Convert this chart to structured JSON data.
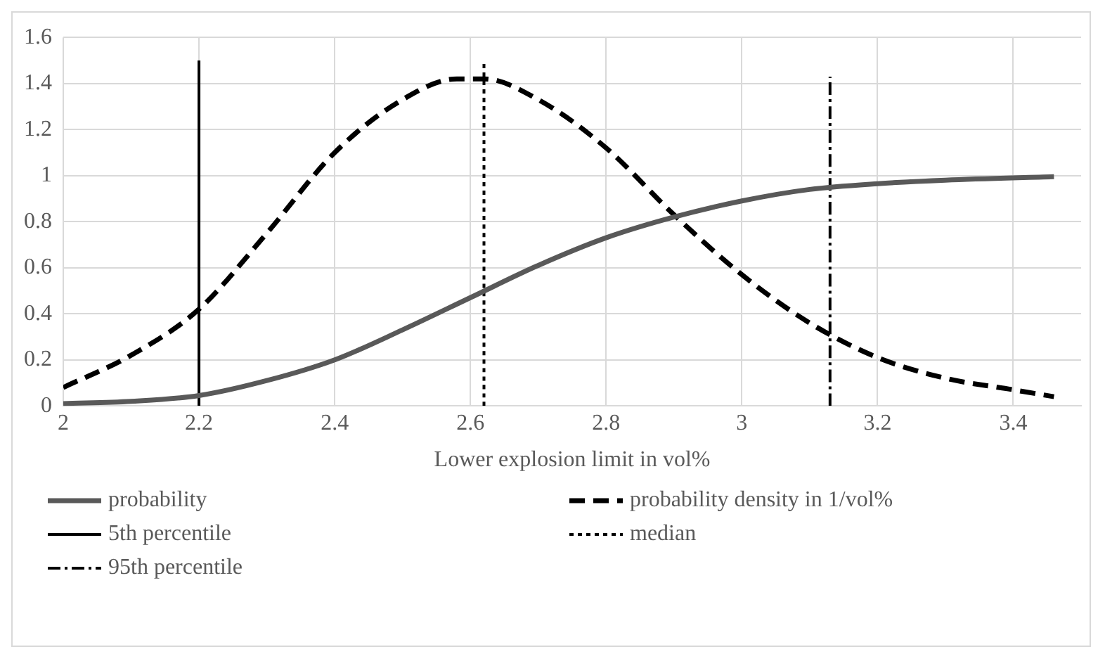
{
  "chart_data": {
    "type": "line",
    "xlabel": "Lower explosion limit in vol%",
    "xlim": [
      2,
      3.5
    ],
    "xticks": [
      2,
      2.2,
      2.4,
      2.6,
      2.8,
      3,
      3.2,
      3.4
    ],
    "ylim": [
      0,
      1.6
    ],
    "yticks": [
      0,
      0.2,
      0.4,
      0.6,
      0.8,
      1,
      1.2,
      1.4,
      1.6
    ],
    "grid": true,
    "legend": "bottom",
    "marker": "none",
    "series": [
      {
        "name": "probability",
        "color": "#595959",
        "line_style": "solid",
        "x": [
          2,
          2.1,
          2.2,
          2.3,
          2.4,
          2.5,
          2.6,
          2.7,
          2.8,
          2.9,
          3,
          3.1,
          3.2,
          3.3,
          3.46
        ],
        "values": [
          0.01,
          0.02,
          0.045,
          0.11,
          0.2,
          0.33,
          0.47,
          0.61,
          0.73,
          0.82,
          0.89,
          0.94,
          0.965,
          0.98,
          0.995
        ]
      },
      {
        "name": "probability density in 1/vol%",
        "color": "#000000",
        "line_style": "dashed",
        "x": [
          2,
          2.1,
          2.2,
          2.3,
          2.4,
          2.5,
          2.58,
          2.62,
          2.7,
          2.8,
          2.9,
          3,
          3.1,
          3.2,
          3.3,
          3.4,
          3.46
        ],
        "values": [
          0.08,
          0.22,
          0.42,
          0.75,
          1.1,
          1.33,
          1.42,
          1.42,
          1.33,
          1.12,
          0.83,
          0.57,
          0.36,
          0.21,
          0.12,
          0.07,
          0.04
        ]
      },
      {
        "name": "5th percentile",
        "color": "#000000",
        "line_style": "solid",
        "x": [
          2.2,
          2.2
        ],
        "values": [
          0,
          1.5
        ]
      },
      {
        "name": "median",
        "color": "#000000",
        "line_style": "dotted",
        "x": [
          2.62,
          2.62
        ],
        "values": [
          0,
          1.5
        ]
      },
      {
        "name": "95th percentile",
        "color": "#000000",
        "line_style": "dashdot",
        "x": [
          3.13,
          3.13
        ],
        "values": [
          0,
          1.43
        ]
      }
    ]
  }
}
